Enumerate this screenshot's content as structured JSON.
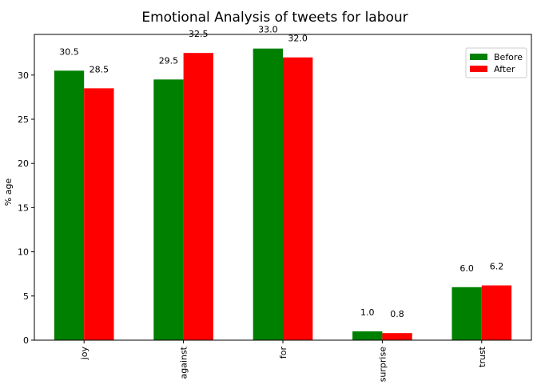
{
  "chart_data": {
    "type": "bar",
    "title": "Emotional Analysis of tweets for labour",
    "xlabel": "",
    "ylabel": "% age",
    "categories": [
      "joy",
      "against",
      "for",
      "surprise",
      "trust"
    ],
    "series": [
      {
        "name": "Before",
        "color": "#008000",
        "values": [
          30.5,
          29.5,
          33.0,
          1.0,
          6.0
        ],
        "labels": [
          "30.5",
          "29.5",
          "33.0",
          "1.0",
          "6.0"
        ]
      },
      {
        "name": "After",
        "color": "#ff0000",
        "values": [
          28.5,
          32.5,
          32.0,
          0.8,
          6.2
        ],
        "labels": [
          "28.5",
          "32.5",
          "32.0",
          "0.8",
          "6.2"
        ]
      }
    ],
    "ylim": [
      0,
      34.6
    ],
    "yticks": [
      "0",
      "5",
      "10",
      "15",
      "20",
      "25",
      "30"
    ],
    "legend_position": "top-right",
    "grid": false
  }
}
